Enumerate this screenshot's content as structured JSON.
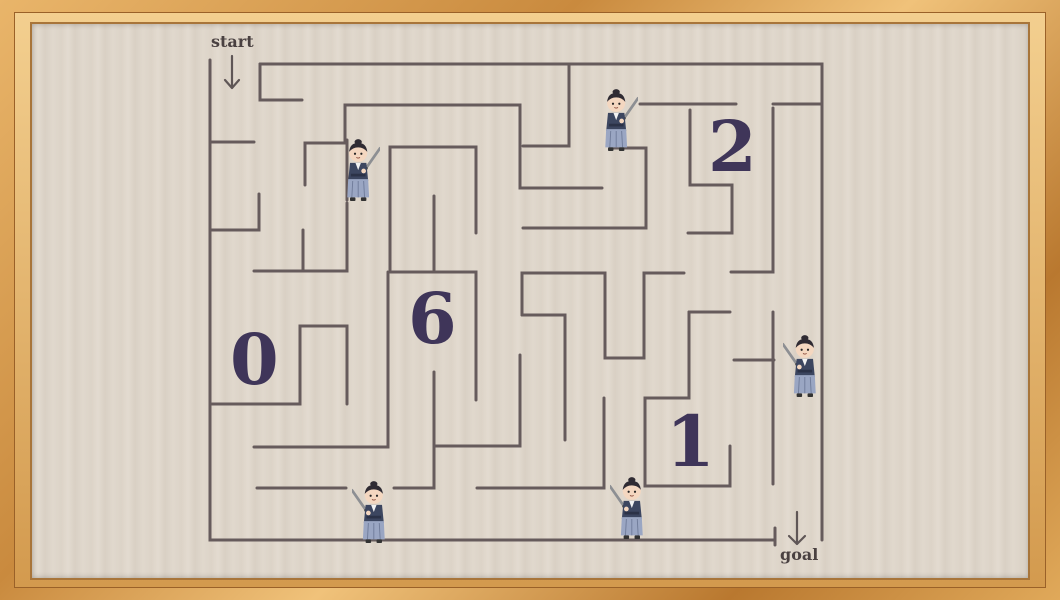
{
  "labels": {
    "start": "start",
    "goal": "goal"
  },
  "numbers": {
    "n0": "0",
    "n6": "6",
    "n2": "2",
    "n1": "1"
  },
  "colors": {
    "wall": "#665b5c",
    "number": "#3f3559",
    "frame": "#c98f45",
    "board": "#ddd4c8"
  },
  "icons": {
    "character": "samurai-with-sword",
    "arrow": "down-arrow"
  }
}
